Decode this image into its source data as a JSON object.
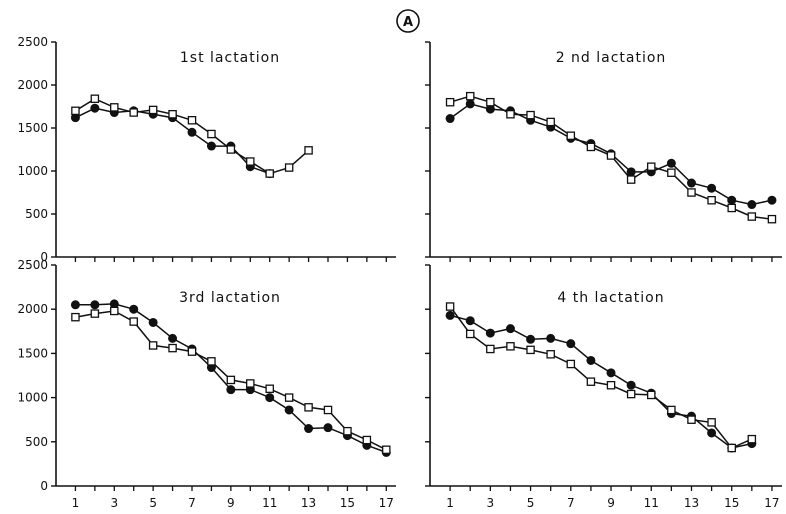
{
  "figure_label": "A",
  "chart_data": [
    {
      "type": "line",
      "title": "1st  lactation",
      "xlabel": "",
      "ylabel": "",
      "xlim": [
        0,
        17.5
      ],
      "ylim": [
        0,
        2500
      ],
      "yticks": [
        0,
        500,
        1000,
        1500,
        2000,
        2500
      ],
      "xticks": [
        1,
        3,
        5,
        7,
        9,
        11,
        13,
        15,
        17
      ],
      "grid": false,
      "series": [
        {
          "marker": "filled-circle",
          "x": [
            1,
            2,
            3,
            4,
            5,
            6,
            7,
            8,
            9,
            10,
            11
          ],
          "y": [
            1620,
            1730,
            1680,
            1700,
            1660,
            1620,
            1450,
            1290,
            1290,
            1050,
            970
          ]
        },
        {
          "marker": "open-square",
          "x": [
            1,
            2,
            3,
            4,
            5,
            6,
            7,
            8,
            9,
            10,
            11,
            12,
            13
          ],
          "y": [
            1700,
            1840,
            1740,
            1680,
            1710,
            1660,
            1590,
            1430,
            1250,
            1110,
            970,
            1040,
            1240
          ]
        }
      ]
    },
    {
      "type": "line",
      "title": "2 nd   lactation",
      "xlabel": "",
      "ylabel": "",
      "xlim": [
        0,
        17.5
      ],
      "ylim": [
        0,
        2500
      ],
      "yticks": [
        0,
        500,
        1000,
        1500,
        2000,
        2500
      ],
      "xticks": [
        1,
        3,
        5,
        7,
        9,
        11,
        13,
        15,
        17
      ],
      "grid": false,
      "series": [
        {
          "marker": "filled-circle",
          "x": [
            1,
            2,
            3,
            4,
            5,
            6,
            7,
            8,
            9,
            10,
            11,
            12,
            13,
            14,
            15,
            16,
            17
          ],
          "y": [
            1610,
            1780,
            1720,
            1700,
            1590,
            1510,
            1380,
            1320,
            1200,
            990,
            990,
            1090,
            860,
            800,
            660,
            610,
            660
          ]
        },
        {
          "marker": "open-square",
          "x": [
            1,
            2,
            3,
            4,
            5,
            6,
            7,
            8,
            9,
            10,
            11,
            12,
            13,
            14,
            15,
            16,
            17
          ],
          "y": [
            1800,
            1870,
            1800,
            1660,
            1650,
            1570,
            1410,
            1280,
            1180,
            900,
            1050,
            980,
            750,
            660,
            570,
            470,
            440
          ]
        }
      ]
    },
    {
      "type": "line",
      "title": "3rd   lactation",
      "xlabel": "",
      "ylabel": "",
      "xlim": [
        0,
        17.5
      ],
      "ylim": [
        0,
        2500
      ],
      "yticks": [
        0,
        500,
        1000,
        1500,
        2000,
        2500
      ],
      "xticks": [
        1,
        3,
        5,
        7,
        9,
        11,
        13,
        15,
        17
      ],
      "grid": false,
      "series": [
        {
          "marker": "filled-circle",
          "x": [
            1,
            2,
            3,
            4,
            5,
            6,
            7,
            8,
            9,
            10,
            11,
            12,
            13,
            14,
            15,
            16,
            17
          ],
          "y": [
            2050,
            2050,
            2060,
            2000,
            1850,
            1670,
            1550,
            1340,
            1090,
            1090,
            1000,
            860,
            650,
            660,
            570,
            460,
            380
          ]
        },
        {
          "marker": "open-square",
          "x": [
            1,
            2,
            3,
            4,
            5,
            6,
            7,
            8,
            9,
            10,
            11,
            12,
            13,
            14,
            15,
            16,
            17
          ],
          "y": [
            1910,
            1950,
            1980,
            1860,
            1590,
            1560,
            1520,
            1410,
            1200,
            1160,
            1100,
            1000,
            890,
            860,
            620,
            520,
            410
          ]
        }
      ]
    },
    {
      "type": "line",
      "title": "4 th   lactation",
      "xlabel": "",
      "ylabel": "",
      "xlim": [
        0,
        17.5
      ],
      "ylim": [
        0,
        2500
      ],
      "yticks": [
        0,
        500,
        1000,
        1500,
        2000,
        2500
      ],
      "xticks": [
        1,
        3,
        5,
        7,
        9,
        11,
        13,
        15,
        17
      ],
      "grid": false,
      "series": [
        {
          "marker": "filled-circle",
          "x": [
            1,
            2,
            3,
            4,
            5,
            6,
            7,
            8,
            9,
            10,
            11,
            12,
            13,
            14,
            15,
            16
          ],
          "y": [
            1930,
            1870,
            1730,
            1780,
            1660,
            1670,
            1610,
            1420,
            1280,
            1140,
            1050,
            820,
            790,
            600,
            430,
            480
          ]
        },
        {
          "marker": "open-square",
          "x": [
            1,
            2,
            3,
            4,
            5,
            6,
            7,
            8,
            9,
            10,
            11,
            12,
            13,
            14,
            15,
            16
          ],
          "y": [
            2030,
            1720,
            1550,
            1580,
            1540,
            1490,
            1380,
            1180,
            1140,
            1040,
            1030,
            860,
            750,
            720,
            430,
            530
          ]
        }
      ]
    }
  ]
}
